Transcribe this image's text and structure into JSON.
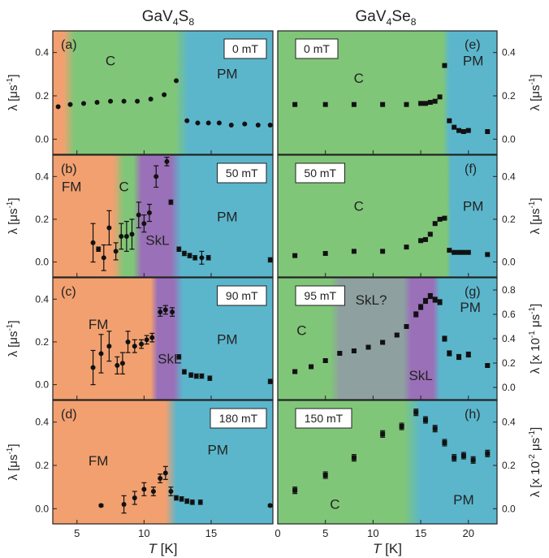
{
  "titles": {
    "left": "GaV4S8",
    "right": "GaV4Se8"
  },
  "x_axis": {
    "label": "T",
    "unit": "[K]"
  },
  "colors": {
    "FM": "#f2a070",
    "C": "#80c678",
    "SkL": "#9a70b8",
    "SkLq": "#8ea0a0",
    "PM": "#5bb6cc",
    "marker": "#111111",
    "frame": "#222222"
  },
  "chart_data": [
    {
      "id": "a",
      "type": "scatter",
      "panel_label": "(a)",
      "field_label": "0 mT",
      "material": "GaV4S8",
      "ylabel": "λ [μs-1]",
      "xlim": [
        3.2,
        19.6
      ],
      "ylim": [
        -0.07,
        0.5
      ],
      "x_ticks": [
        5,
        10,
        15
      ],
      "y_ticks": [
        0.0,
        0.2,
        0.4
      ],
      "y_tick_labels": [
        "0.0",
        "0.2",
        "0.4"
      ],
      "marker": "circle",
      "phases": [
        {
          "name": "FM",
          "from": 3.2,
          "to": 4.0,
          "label": ""
        },
        {
          "name": "C",
          "from": 4.8,
          "to": 12.3,
          "label": "C"
        },
        {
          "name": "PM",
          "from": 13.3,
          "to": 19.6,
          "label": "PM"
        }
      ],
      "annotations": [
        {
          "text": "C",
          "x": 7.5,
          "y": 0.34
        },
        {
          "text": "PM",
          "x": 16.2,
          "y": 0.28
        }
      ],
      "x": [
        3.6,
        4.5,
        5.5,
        6.5,
        7.5,
        8.5,
        9.5,
        10.5,
        11.5,
        12.4,
        13.2,
        14.0,
        14.8,
        15.6,
        16.5,
        17.5,
        18.5,
        19.4
      ],
      "y": [
        0.15,
        0.16,
        0.165,
        0.17,
        0.175,
        0.175,
        0.175,
        0.185,
        0.205,
        0.27,
        0.085,
        0.075,
        0.075,
        0.075,
        0.065,
        0.07,
        0.065,
        0.065
      ],
      "err": []
    },
    {
      "id": "b",
      "type": "scatter",
      "panel_label": "(b)",
      "field_label": "50 mT",
      "material": "GaV4S8",
      "ylabel": "λ [μs-1]",
      "xlim": [
        3.2,
        19.6
      ],
      "ylim": [
        -0.07,
        0.5
      ],
      "x_ticks": [
        5,
        10,
        15
      ],
      "y_ticks": [
        0.0,
        0.2,
        0.4
      ],
      "y_tick_labels": [
        "0.0",
        "0.2",
        "0.4"
      ],
      "marker": "circle",
      "phases": [
        {
          "name": "FM",
          "from": 3.2,
          "to": 7.7,
          "label": "FM"
        },
        {
          "name": "C",
          "from": 8.5,
          "to": 9.2,
          "label": "C"
        },
        {
          "name": "SkL",
          "from": 9.8,
          "to": 12.0,
          "label": "SkL"
        },
        {
          "name": "PM",
          "from": 12.8,
          "to": 19.6,
          "label": "PM"
        }
      ],
      "annotations": [
        {
          "text": "FM",
          "x": 4.6,
          "y": 0.33
        },
        {
          "text": "C",
          "x": 8.5,
          "y": 0.33
        },
        {
          "text": "SkL",
          "x": 11.0,
          "y": 0.08
        },
        {
          "text": "PM",
          "x": 16.2,
          "y": 0.19
        }
      ],
      "x": [
        6.2,
        6.6,
        7.0,
        7.4,
        7.9,
        8.3,
        8.7,
        9.1,
        9.6,
        10.0,
        10.4,
        10.9,
        11.7,
        12.0,
        12.6,
        13.0,
        13.4,
        13.8,
        14.3,
        14.8,
        19.4
      ],
      "y": [
        0.09,
        0.06,
        0.02,
        0.16,
        0.05,
        0.12,
        0.12,
        0.13,
        0.22,
        0.18,
        0.23,
        0.4,
        0.47,
        0.28,
        0.06,
        0.04,
        0.03,
        0.02,
        0.02,
        0.02,
        0.01
      ],
      "err": [
        0.09,
        0.01,
        0.06,
        0.08,
        0.04,
        0.06,
        0.07,
        0.07,
        0.06,
        0.04,
        0.04,
        0.05,
        0.02,
        0.01,
        0.01,
        0.01,
        0.01,
        0.01,
        0.03,
        0.01,
        0.01
      ]
    },
    {
      "id": "c",
      "type": "scatter",
      "panel_label": "(c)",
      "field_label": "90 mT",
      "material": "GaV4S8",
      "ylabel": "λ [μs-1]",
      "xlim": [
        3.2,
        19.6
      ],
      "ylim": [
        -0.07,
        0.5
      ],
      "x_ticks": [
        5,
        10,
        15
      ],
      "y_ticks": [
        0.0,
        0.2,
        0.4
      ],
      "y_tick_labels": [
        "0.0",
        "0.2",
        "0.4"
      ],
      "marker": "circle",
      "phases": [
        {
          "name": "FM",
          "from": 3.2,
          "to": 10.5,
          "label": "FM"
        },
        {
          "name": "SkL",
          "from": 11.0,
          "to": 12.2,
          "label": "SkL"
        },
        {
          "name": "PM",
          "from": 12.9,
          "to": 19.6,
          "label": "PM"
        }
      ],
      "annotations": [
        {
          "text": "FM",
          "x": 6.6,
          "y": 0.26
        },
        {
          "text": "SkL",
          "x": 11.9,
          "y": 0.1
        },
        {
          "text": "PM",
          "x": 16.2,
          "y": 0.19
        }
      ],
      "x": [
        6.2,
        6.8,
        7.4,
        8.0,
        8.4,
        8.8,
        9.3,
        9.8,
        10.2,
        10.6,
        11.2,
        11.6,
        12.1,
        12.6,
        13.0,
        13.5,
        13.9,
        14.3,
        14.9,
        19.4
      ],
      "y": [
        0.08,
        0.145,
        0.18,
        0.09,
        0.1,
        0.2,
        0.18,
        0.19,
        0.21,
        0.22,
        0.34,
        0.35,
        0.34,
        0.13,
        0.06,
        0.045,
        0.04,
        0.04,
        0.03,
        0.015
      ],
      "err": [
        0.08,
        0.09,
        0.07,
        0.04,
        0.05,
        0.05,
        0.03,
        0.02,
        0.02,
        0.02,
        0.02,
        0.02,
        0.02,
        0.01,
        0.01,
        0.01,
        0.01,
        0.01,
        0.01,
        0.01
      ]
    },
    {
      "id": "d",
      "type": "scatter",
      "panel_label": "(d)",
      "field_label": "180 mT",
      "material": "GaV4S8",
      "ylabel": "λ [μs-1]",
      "xlim": [
        3.2,
        19.6
      ],
      "ylim": [
        -0.07,
        0.5
      ],
      "x_ticks": [
        5,
        10,
        15
      ],
      "y_ticks": [
        0.0,
        0.2,
        0.4
      ],
      "y_tick_labels": [
        "0.0",
        "0.2",
        "0.4"
      ],
      "xlabel": "T [K]",
      "marker": "circle",
      "phases": [
        {
          "name": "FM",
          "from": 3.2,
          "to": 11.6,
          "label": "FM"
        },
        {
          "name": "PM",
          "from": 12.4,
          "to": 19.6,
          "label": "PM"
        }
      ],
      "annotations": [
        {
          "text": "FM",
          "x": 6.6,
          "y": 0.2
        },
        {
          "text": "PM",
          "x": 15.5,
          "y": 0.25
        }
      ],
      "x": [
        6.8,
        8.5,
        9.3,
        10.0,
        10.7,
        11.2,
        11.6,
        12.0,
        12.4,
        12.8,
        13.2,
        13.6,
        14.2,
        19.4
      ],
      "y": [
        0.015,
        0.02,
        0.05,
        0.09,
        0.08,
        0.14,
        0.165,
        0.08,
        0.05,
        0.045,
        0.035,
        0.03,
        0.03,
        0.015
      ],
      "err": [
        0.005,
        0.04,
        0.03,
        0.03,
        0.02,
        0.02,
        0.03,
        0.02,
        0.01,
        0.01,
        0.01,
        0.01,
        0.01,
        0.005
      ]
    },
    {
      "id": "e",
      "type": "scatter",
      "panel_label": "(e)",
      "field_label": "0 mT",
      "material": "GaV4Se8",
      "ylabel": "λ [μs-1]",
      "xlim": [
        0,
        23
      ],
      "ylim": [
        -0.07,
        0.5
      ],
      "x_ticks": [
        0,
        5,
        10,
        15,
        20
      ],
      "y_ticks": [
        0.0,
        0.2,
        0.4
      ],
      "y_tick_labels": [
        "0.0",
        "0.2",
        "0.4"
      ],
      "marker": "square",
      "phases": [
        {
          "name": "C",
          "from": 0,
          "to": 17.3,
          "label": "C"
        },
        {
          "name": "PM",
          "from": 18.0,
          "to": 23,
          "label": "PM"
        }
      ],
      "annotations": [
        {
          "text": "C",
          "x": 8.5,
          "y": 0.26
        },
        {
          "text": "PM",
          "x": 20.5,
          "y": 0.34
        }
      ],
      "x": [
        1.8,
        5.0,
        8.0,
        11.0,
        13.5,
        15.0,
        15.5,
        16.0,
        16.5,
        17.0,
        17.5,
        18.0,
        18.5,
        19.0,
        19.5,
        20.0,
        22.0
      ],
      "y": [
        0.16,
        0.16,
        0.16,
        0.16,
        0.16,
        0.165,
        0.165,
        0.17,
        0.175,
        0.195,
        0.34,
        0.085,
        0.055,
        0.04,
        0.035,
        0.04,
        0.035
      ],
      "err": []
    },
    {
      "id": "f",
      "type": "scatter",
      "panel_label": "(f)",
      "field_label": "50 mT",
      "material": "GaV4Se8",
      "ylabel": "λ [μs-1]",
      "xlim": [
        0,
        23
      ],
      "ylim": [
        -0.07,
        0.5
      ],
      "x_ticks": [
        0,
        5,
        10,
        15,
        20
      ],
      "y_ticks": [
        0.0,
        0.2,
        0.4
      ],
      "y_tick_labels": [
        "0.0",
        "0.2",
        "0.4"
      ],
      "marker": "square",
      "phases": [
        {
          "name": "C",
          "from": 0,
          "to": 17.7,
          "label": "C"
        },
        {
          "name": "PM",
          "from": 18.2,
          "to": 23,
          "label": "PM"
        }
      ],
      "annotations": [
        {
          "text": "C",
          "x": 8.5,
          "y": 0.24
        },
        {
          "text": "PM",
          "x": 20.5,
          "y": 0.24
        }
      ],
      "x": [
        1.8,
        5.0,
        8.0,
        11.0,
        13.5,
        15.0,
        15.5,
        16.0,
        16.5,
        17.0,
        17.5,
        18.0,
        18.5,
        19.0,
        19.5,
        20.0,
        22.0
      ],
      "y": [
        0.03,
        0.04,
        0.05,
        0.05,
        0.07,
        0.1,
        0.105,
        0.13,
        0.18,
        0.2,
        0.205,
        0.055,
        0.045,
        0.045,
        0.045,
        0.045,
        0.035
      ],
      "err": []
    },
    {
      "id": "g",
      "type": "scatter",
      "panel_label": "(g)",
      "field_label": "95 mT",
      "material": "GaV4Se8",
      "ylabel": "λ [x 10-1 μs-1]",
      "xlim": [
        0,
        23
      ],
      "ylim": [
        -0.1,
        0.9
      ],
      "x_ticks": [
        0,
        5,
        10,
        15,
        20
      ],
      "y_ticks": [
        0.0,
        0.2,
        0.4,
        0.6,
        0.8
      ],
      "y_tick_labels": [
        "0.0",
        "0.2",
        "0.4",
        "0.6",
        "0.8"
      ],
      "marker": "square",
      "phases": [
        {
          "name": "C",
          "from": 0,
          "to": 5.5,
          "label": "C"
        },
        {
          "name": "SkLq",
          "from": 6.5,
          "to": 13.2,
          "label": "SkL?"
        },
        {
          "name": "SkL",
          "from": 14.0,
          "to": 16.3,
          "label": "SkL"
        },
        {
          "name": "PM",
          "from": 17.0,
          "to": 23,
          "label": "PM"
        }
      ],
      "annotations": [
        {
          "text": "C",
          "x": 2.5,
          "y": 0.43
        },
        {
          "text": "SkL?",
          "x": 9.8,
          "y": 0.68
        },
        {
          "text": "SkL",
          "x": 15.0,
          "y": 0.06
        },
        {
          "text": "PM",
          "x": 20.2,
          "y": 0.62
        }
      ],
      "x": [
        1.8,
        3.5,
        5.0,
        6.5,
        8.0,
        9.5,
        11.0,
        12.5,
        13.5,
        14.5,
        15.0,
        15.5,
        16.0,
        16.5,
        17.0,
        17.5,
        18.0,
        19.0,
        20.0,
        22.0
      ],
      "y": [
        0.13,
        0.17,
        0.22,
        0.28,
        0.3,
        0.33,
        0.37,
        0.43,
        0.5,
        0.6,
        0.66,
        0.71,
        0.75,
        0.72,
        0.7,
        0.4,
        0.28,
        0.25,
        0.27,
        0.18
      ],
      "err": [
        0.01,
        0.01,
        0.01,
        0.01,
        0.01,
        0.01,
        0.01,
        0.01,
        0.01,
        0.02,
        0.02,
        0.02,
        0.02,
        0.02,
        0.02,
        0.02,
        0.02,
        0.02,
        0.02,
        0.01
      ]
    },
    {
      "id": "h",
      "type": "scatter",
      "panel_label": "(h)",
      "field_label": "150 mT",
      "material": "GaV4Se8",
      "ylabel": "λ [x 10-2 μs-1]",
      "xlim": [
        0,
        23
      ],
      "ylim": [
        -0.07,
        0.5
      ],
      "x_ticks": [
        0,
        5,
        10,
        15,
        20
      ],
      "y_ticks": [
        0.0,
        0.2,
        0.4
      ],
      "y_tick_labels": [
        "0.0",
        "0.2",
        "0.4"
      ],
      "xlabel": "T [K]",
      "marker": "square",
      "phases": [
        {
          "name": "C",
          "from": 0,
          "to": 13.2,
          "label": "C"
        },
        {
          "name": "PM",
          "from": 15.0,
          "to": 23,
          "label": "PM"
        }
      ],
      "annotations": [
        {
          "text": "C",
          "x": 6.0,
          "y": -0.0
        },
        {
          "text": "PM",
          "x": 19.5,
          "y": 0.02
        }
      ],
      "x": [
        1.8,
        5.0,
        8.0,
        11.0,
        13.0,
        14.5,
        15.5,
        16.5,
        17.5,
        18.5,
        19.5,
        20.5,
        22.0
      ],
      "y": [
        0.085,
        0.155,
        0.235,
        0.345,
        0.38,
        0.445,
        0.41,
        0.37,
        0.305,
        0.235,
        0.245,
        0.225,
        0.255
      ],
      "err": [
        0.015,
        0.015,
        0.015,
        0.015,
        0.015,
        0.015,
        0.015,
        0.015,
        0.015,
        0.015,
        0.015,
        0.015,
        0.015
      ]
    }
  ]
}
